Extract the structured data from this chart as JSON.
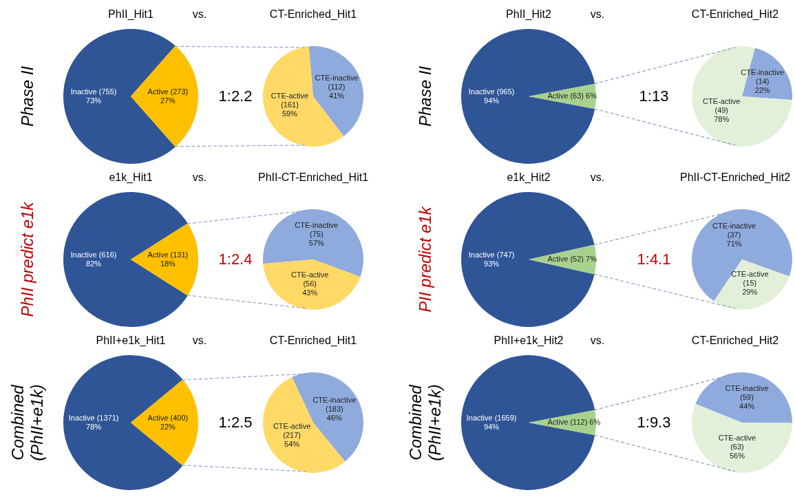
{
  "chart_data": [
    {
      "type": "pie",
      "title": "PhII_Hit1",
      "categories": [
        "Inactive (755)",
        "Active (273)"
      ],
      "values": [
        73,
        27
      ],
      "value_labels": [
        "73%",
        "27%"
      ],
      "colors": [
        "#2f5597",
        "#ffc000"
      ],
      "annotations": [
        "Phase II",
        "vs."
      ]
    },
    {
      "type": "pie",
      "title": "CT-Enriched_Hit1",
      "categories": [
        "CTE-inactive (112)",
        "CTE-active (161)"
      ],
      "values": [
        41,
        59
      ],
      "value_labels": [
        "41%",
        "59%"
      ],
      "colors": [
        "#8faadc",
        "#ffd966"
      ],
      "annotations": [
        "1:2.2"
      ]
    },
    {
      "type": "pie",
      "title": "PhII_Hit2",
      "categories": [
        "Inactive (965)",
        "Active (63)"
      ],
      "values": [
        94,
        6
      ],
      "value_labels": [
        "94%",
        "6%"
      ],
      "colors": [
        "#2f5597",
        "#a9d18e"
      ],
      "annotations": [
        "Phase II",
        "vs."
      ]
    },
    {
      "type": "pie",
      "title": "CT-Enriched_Hit2",
      "categories": [
        "CTE-inactive (14)",
        "CTE-active (49)"
      ],
      "values": [
        22,
        78
      ],
      "value_labels": [
        "22%",
        "78%"
      ],
      "colors": [
        "#8faadc",
        "#e2f0d9"
      ],
      "annotations": [
        "1:13"
      ]
    },
    {
      "type": "pie",
      "title": "e1k_Hit1",
      "categories": [
        "Inactive (616)",
        "Active (131)"
      ],
      "values": [
        82,
        18
      ],
      "value_labels": [
        "82%",
        "18%"
      ],
      "colors": [
        "#2f5597",
        "#ffc000"
      ],
      "annotations": [
        "PhII predict e1k",
        "vs."
      ]
    },
    {
      "type": "pie",
      "title": "PhII-CT-Enriched_Hit1",
      "categories": [
        "CTE-inactive (75)",
        "CTE-active (56)"
      ],
      "values": [
        57,
        43
      ],
      "value_labels": [
        "57%",
        "43%"
      ],
      "colors": [
        "#8faadc",
        "#ffd966"
      ],
      "annotations": [
        "1:2.4"
      ]
    },
    {
      "type": "pie",
      "title": "e1k_Hit2",
      "categories": [
        "Inactive (747)",
        "Active (52)"
      ],
      "values": [
        93,
        7
      ],
      "value_labels": [
        "93%",
        "7%"
      ],
      "colors": [
        "#2f5597",
        "#a9d18e"
      ],
      "annotations": [
        "PII predict e1k",
        "vs."
      ]
    },
    {
      "type": "pie",
      "title": "PhII-CT-Enriched_Hit2",
      "categories": [
        "CTE-inactive (37)",
        "CTE-active (15)"
      ],
      "values": [
        71,
        29
      ],
      "value_labels": [
        "71%",
        "29%"
      ],
      "colors": [
        "#8faadc",
        "#e2f0d9"
      ],
      "annotations": [
        "1:4.1"
      ]
    },
    {
      "type": "pie",
      "title": "PhII+e1k_Hit1",
      "categories": [
        "Inactive (1371)",
        "Active (400)"
      ],
      "values": [
        78,
        22
      ],
      "value_labels": [
        "78%",
        "22%"
      ],
      "colors": [
        "#2f5597",
        "#ffc000"
      ],
      "annotations": [
        "Combined (PhII+e1k)",
        "vs."
      ]
    },
    {
      "type": "pie",
      "title": "CT-Enriched_Hit1",
      "categories": [
        "CTE-inactive (183)",
        "CTE-active (217)"
      ],
      "values": [
        46,
        54
      ],
      "value_labels": [
        "46%",
        "54%"
      ],
      "colors": [
        "#8faadc",
        "#ffd966"
      ],
      "annotations": [
        "1:2.5"
      ]
    },
    {
      "type": "pie",
      "title": "PhII+e1k_Hit2",
      "categories": [
        "Inactive (1659)",
        "Active (112)"
      ],
      "values": [
        94,
        6
      ],
      "value_labels": [
        "94%",
        "6%"
      ],
      "colors": [
        "#2f5597",
        "#a9d18e"
      ],
      "annotations": [
        "Combined (PhII+e1k)",
        "vs."
      ]
    },
    {
      "type": "pie",
      "title": "CT-Enriched_Hit2",
      "categories": [
        "CTE-inactive (59)",
        "CTE-active (63)"
      ],
      "values": [
        44,
        56
      ],
      "value_labels": [
        "44%",
        "56%"
      ],
      "colors": [
        "#8faadc",
        "#e2f0d9"
      ],
      "annotations": [
        "1:9.3"
      ]
    }
  ]
}
